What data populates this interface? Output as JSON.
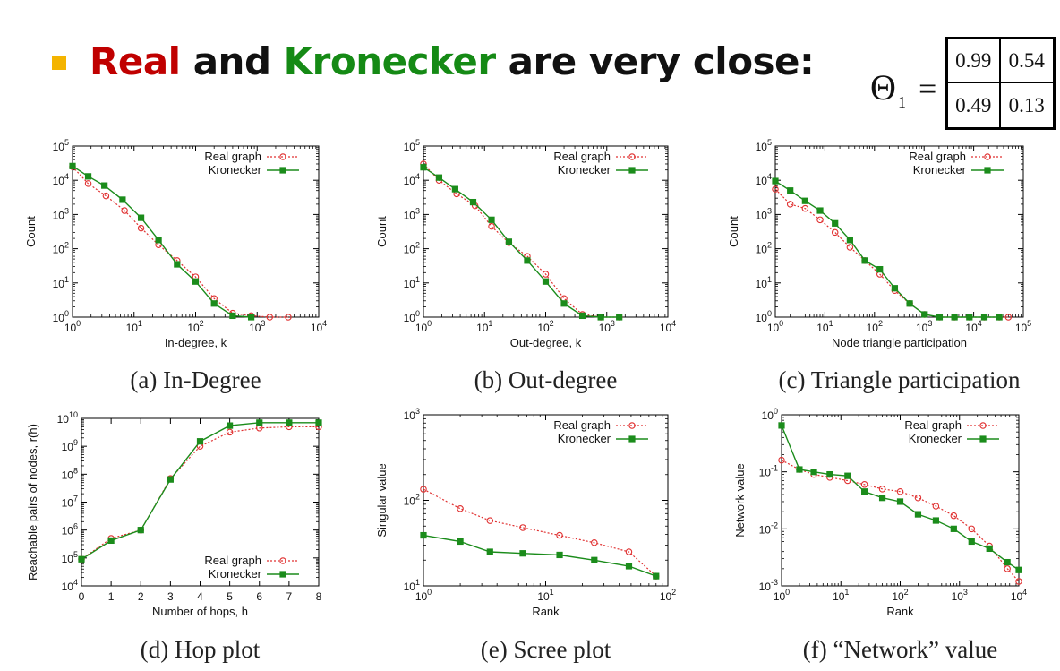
{
  "slide": {
    "heading": {
      "word_real": "Real",
      "word_and": "and",
      "word_kronecker": "Kronecker",
      "word_rest": "are very close:"
    },
    "theta": {
      "symbol": "Θ",
      "subscript": "1",
      "equals": "=",
      "matrix": [
        "0.99",
        "0.54",
        "0.49",
        "0.13"
      ]
    },
    "colors": {
      "real": "#e03030",
      "kronecker": "#1b8c1b",
      "accent": "#f4b400"
    }
  },
  "chart_data": [
    {
      "id": "a",
      "type": "line",
      "caption": "(a) In-Degree",
      "xlabel": "In-degree, k",
      "ylabel": "Count",
      "xscale": "log",
      "yscale": "log",
      "xlim": [
        1,
        10000
      ],
      "ylim": [
        1,
        100000
      ],
      "xticks": [
        {
          "v": 1,
          "b": "10",
          "e": "0"
        },
        {
          "v": 10,
          "b": "10",
          "e": "1"
        },
        {
          "v": 100,
          "b": "10",
          "e": "2"
        },
        {
          "v": 1000,
          "b": "10",
          "e": "3"
        },
        {
          "v": 10000,
          "b": "10",
          "e": "4"
        }
      ],
      "yticks": [
        {
          "v": 1,
          "b": "10",
          "e": "0"
        },
        {
          "v": 10,
          "b": "10",
          "e": "1"
        },
        {
          "v": 100,
          "b": "10",
          "e": "2"
        },
        {
          "v": 1000,
          "b": "10",
          "e": "3"
        },
        {
          "v": 10000,
          "b": "10",
          "e": "4"
        },
        {
          "v": 100000,
          "b": "10",
          "e": "5"
        }
      ],
      "legend": "top-right",
      "series": [
        {
          "name": "Real graph",
          "style": "real",
          "x": [
            1,
            1.8,
            3.5,
            7,
            13,
            25,
            50,
            100,
            200,
            400,
            800,
            1600,
            3200
          ],
          "y": [
            25000,
            8000,
            3500,
            1300,
            400,
            130,
            45,
            15,
            3.5,
            1.3,
            1.1,
            1,
            1
          ]
        },
        {
          "name": "Kronecker",
          "style": "kron",
          "x": [
            1,
            1.8,
            3.3,
            6.5,
            13,
            25,
            50,
            100,
            200,
            400,
            800
          ],
          "y": [
            26000,
            13000,
            7000,
            2700,
            800,
            180,
            35,
            11,
            2.5,
            1.1,
            1
          ]
        }
      ]
    },
    {
      "id": "b",
      "type": "line",
      "caption": "(b) Out-degree",
      "xlabel": "Out-degree, k",
      "ylabel": "Count",
      "xscale": "log",
      "yscale": "log",
      "xlim": [
        1,
        10000
      ],
      "ylim": [
        1,
        100000
      ],
      "xticks": [
        {
          "v": 1,
          "b": "10",
          "e": "0"
        },
        {
          "v": 10,
          "b": "10",
          "e": "1"
        },
        {
          "v": 100,
          "b": "10",
          "e": "2"
        },
        {
          "v": 1000,
          "b": "10",
          "e": "3"
        },
        {
          "v": 10000,
          "b": "10",
          "e": "4"
        }
      ],
      "yticks": [
        {
          "v": 1,
          "b": "10",
          "e": "0"
        },
        {
          "v": 10,
          "b": "10",
          "e": "1"
        },
        {
          "v": 100,
          "b": "10",
          "e": "2"
        },
        {
          "v": 1000,
          "b": "10",
          "e": "3"
        },
        {
          "v": 10000,
          "b": "10",
          "e": "4"
        },
        {
          "v": 100000,
          "b": "10",
          "e": "5"
        }
      ],
      "legend": "top-right",
      "series": [
        {
          "name": "Real graph",
          "style": "real",
          "x": [
            1,
            1.8,
            3.5,
            7,
            13,
            25,
            50,
            100,
            200,
            400,
            800,
            1600
          ],
          "y": [
            30000,
            10000,
            4000,
            1800,
            450,
            150,
            60,
            18,
            3.5,
            1.2,
            1,
            1
          ]
        },
        {
          "name": "Kronecker",
          "style": "kron",
          "x": [
            1,
            1.8,
            3.3,
            6.5,
            13,
            25,
            50,
            100,
            200,
            400,
            800,
            1600
          ],
          "y": [
            24000,
            12000,
            5500,
            2300,
            700,
            160,
            45,
            11,
            2.5,
            1.1,
            1,
            1
          ]
        }
      ]
    },
    {
      "id": "c",
      "type": "line",
      "caption": "(c) Triangle participation",
      "xlabel": "Node triangle participation",
      "ylabel": "Count",
      "xscale": "log",
      "yscale": "log",
      "xlim": [
        1,
        100000
      ],
      "ylim": [
        1,
        100000
      ],
      "xticks": [
        {
          "v": 1,
          "b": "10",
          "e": "0"
        },
        {
          "v": 10,
          "b": "10",
          "e": "1"
        },
        {
          "v": 100,
          "b": "10",
          "e": "2"
        },
        {
          "v": 1000,
          "b": "10",
          "e": "3"
        },
        {
          "v": 10000,
          "b": "10",
          "e": "4"
        },
        {
          "v": 100000,
          "b": "10",
          "e": "5"
        }
      ],
      "yticks": [
        {
          "v": 1,
          "b": "10",
          "e": "0"
        },
        {
          "v": 10,
          "b": "10",
          "e": "1"
        },
        {
          "v": 100,
          "b": "10",
          "e": "2"
        },
        {
          "v": 1000,
          "b": "10",
          "e": "3"
        },
        {
          "v": 10000,
          "b": "10",
          "e": "4"
        },
        {
          "v": 100000,
          "b": "10",
          "e": "5"
        }
      ],
      "legend": "top-right",
      "series": [
        {
          "name": "Real graph",
          "style": "real",
          "x": [
            1,
            2,
            4,
            8,
            16,
            32,
            64,
            128,
            256,
            512,
            1024,
            2048,
            4096,
            8192,
            16384,
            32768,
            50000
          ],
          "y": [
            5500,
            2000,
            1500,
            700,
            300,
            110,
            45,
            18,
            6,
            2.5,
            1.2,
            1,
            1,
            1,
            1,
            1,
            1
          ]
        },
        {
          "name": "Kronecker",
          "style": "kron",
          "x": [
            1,
            2,
            4,
            8,
            16,
            32,
            64,
            128,
            256,
            512,
            1024,
            2048,
            4096,
            8192,
            16384,
            32768
          ],
          "y": [
            9500,
            5000,
            2500,
            1300,
            550,
            180,
            45,
            25,
            7,
            2.5,
            1.2,
            1,
            1,
            1,
            1,
            1
          ]
        }
      ]
    },
    {
      "id": "d",
      "type": "line",
      "caption": "(d) Hop plot",
      "xlabel": "Number of hops, h",
      "ylabel": "Reachable pairs of nodes, r(h)",
      "xscale": "linear",
      "yscale": "log",
      "xlim": [
        0,
        8
      ],
      "ylim": [
        10000,
        10000000000
      ],
      "xticks": [
        {
          "v": 0,
          "t": "0"
        },
        {
          "v": 1,
          "t": "1"
        },
        {
          "v": 2,
          "t": "2"
        },
        {
          "v": 3,
          "t": "3"
        },
        {
          "v": 4,
          "t": "4"
        },
        {
          "v": 5,
          "t": "5"
        },
        {
          "v": 6,
          "t": "6"
        },
        {
          "v": 7,
          "t": "7"
        },
        {
          "v": 8,
          "t": "8"
        }
      ],
      "yticks": [
        {
          "v": 10000,
          "b": "10",
          "e": "4"
        },
        {
          "v": 100000,
          "b": "10",
          "e": "5"
        },
        {
          "v": 1000000,
          "b": "10",
          "e": "6"
        },
        {
          "v": 10000000,
          "b": "10",
          "e": "7"
        },
        {
          "v": 100000000,
          "b": "10",
          "e": "8"
        },
        {
          "v": 1000000000,
          "b": "10",
          "e": "9"
        },
        {
          "v": 10000000000,
          "b": "10",
          "e": "10"
        }
      ],
      "legend": "bottom-right",
      "series": [
        {
          "name": "Real graph",
          "style": "real",
          "x": [
            0,
            1,
            2,
            3,
            4,
            5,
            6,
            7,
            8
          ],
          "y": [
            90000,
            500000,
            1000000,
            70000000,
            1000000000,
            3200000000,
            4500000000,
            5000000000,
            5000000000
          ]
        },
        {
          "name": "Kronecker",
          "style": "kron",
          "x": [
            0,
            1,
            2,
            3,
            4,
            5,
            6,
            7,
            8
          ],
          "y": [
            90000,
            420000,
            1000000,
            65000000,
            1500000000,
            5500000000,
            7000000000,
            7000000000,
            7000000000
          ]
        }
      ]
    },
    {
      "id": "e",
      "type": "line",
      "caption": "(e) Scree plot",
      "xlabel": "Rank",
      "ylabel": "Singular value",
      "xscale": "log",
      "yscale": "log",
      "xlim": [
        1,
        100
      ],
      "ylim": [
        10,
        1000
      ],
      "xticks": [
        {
          "v": 1,
          "b": "10",
          "e": "0"
        },
        {
          "v": 10,
          "b": "10",
          "e": "1"
        },
        {
          "v": 100,
          "b": "10",
          "e": "2"
        }
      ],
      "yticks": [
        {
          "v": 10,
          "b": "10",
          "e": "1"
        },
        {
          "v": 100,
          "b": "10",
          "e": "2"
        },
        {
          "v": 1000,
          "b": "10",
          "e": "3"
        }
      ],
      "legend": "top-right",
      "series": [
        {
          "name": "Real graph",
          "style": "real",
          "x": [
            1,
            2,
            3.5,
            6.5,
            13,
            25,
            48,
            80
          ],
          "y": [
            135,
            80,
            58,
            48,
            39,
            32,
            25,
            13
          ]
        },
        {
          "name": "Kronecker",
          "style": "kron",
          "x": [
            1,
            2,
            3.5,
            6.5,
            13,
            25,
            48,
            80
          ],
          "y": [
            39,
            33,
            25,
            24,
            23,
            20,
            17,
            13
          ]
        }
      ]
    },
    {
      "id": "f",
      "type": "line",
      "caption": "(f) “Network” value",
      "xlabel": "Rank",
      "ylabel": "Network value",
      "xscale": "log",
      "yscale": "log",
      "xlim": [
        1,
        10000
      ],
      "ylim": [
        0.001,
        1
      ],
      "xticks": [
        {
          "v": 1,
          "b": "10",
          "e": "0"
        },
        {
          "v": 10,
          "b": "10",
          "e": "1"
        },
        {
          "v": 100,
          "b": "10",
          "e": "2"
        },
        {
          "v": 1000,
          "b": "10",
          "e": "3"
        },
        {
          "v": 10000,
          "b": "10",
          "e": "4"
        }
      ],
      "yticks": [
        {
          "v": 0.001,
          "b": "10",
          "e": "-3"
        },
        {
          "v": 0.01,
          "b": "10",
          "e": "-2"
        },
        {
          "v": 0.1,
          "b": "10",
          "e": "-1"
        },
        {
          "v": 1,
          "b": "10",
          "e": "0"
        }
      ],
      "legend": "top-right",
      "series": [
        {
          "name": "Real graph",
          "style": "real",
          "x": [
            1,
            2,
            3.5,
            6.5,
            13,
            25,
            50,
            100,
            200,
            400,
            800,
            1600,
            3200,
            6400,
            10000
          ],
          "y": [
            0.16,
            0.11,
            0.09,
            0.08,
            0.07,
            0.06,
            0.05,
            0.045,
            0.035,
            0.025,
            0.017,
            0.01,
            0.005,
            0.002,
            0.0012
          ]
        },
        {
          "name": "Kronecker",
          "style": "kron",
          "x": [
            1,
            2,
            3.5,
            6.5,
            13,
            25,
            50,
            100,
            200,
            400,
            800,
            1600,
            3200,
            6400,
            10000
          ],
          "y": [
            0.65,
            0.11,
            0.1,
            0.09,
            0.085,
            0.045,
            0.035,
            0.03,
            0.018,
            0.014,
            0.01,
            0.006,
            0.0045,
            0.0026,
            0.0019
          ]
        }
      ]
    }
  ]
}
